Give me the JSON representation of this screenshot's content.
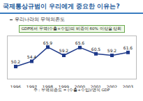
{
  "chart_data": {
    "type": "line",
    "title": "국제통상규범이 우리에게 중요한 이유는?",
    "subtitle": "우리나라의 무역의존도",
    "annotations": [
      "GDP에서 무역(수출+수입)의 비중이 60% 이상을 상회"
    ],
    "caption": "주 : 무역의존도 = (수출+수입)/명목 GDP",
    "categories": [
      "1996",
      "1997",
      "1998",
      "1999",
      "2000",
      "2001",
      "2002",
      "2003"
    ],
    "values": [
      50.2,
      54.4,
      65.9,
      59.2,
      65.6,
      60.5,
      59.2,
      61.6
    ],
    "color": "#1f3a8a",
    "marker": "square",
    "ylim": [
      40,
      75
    ],
    "grid": false,
    "data_labels": true,
    "tick_labels": "x"
  }
}
